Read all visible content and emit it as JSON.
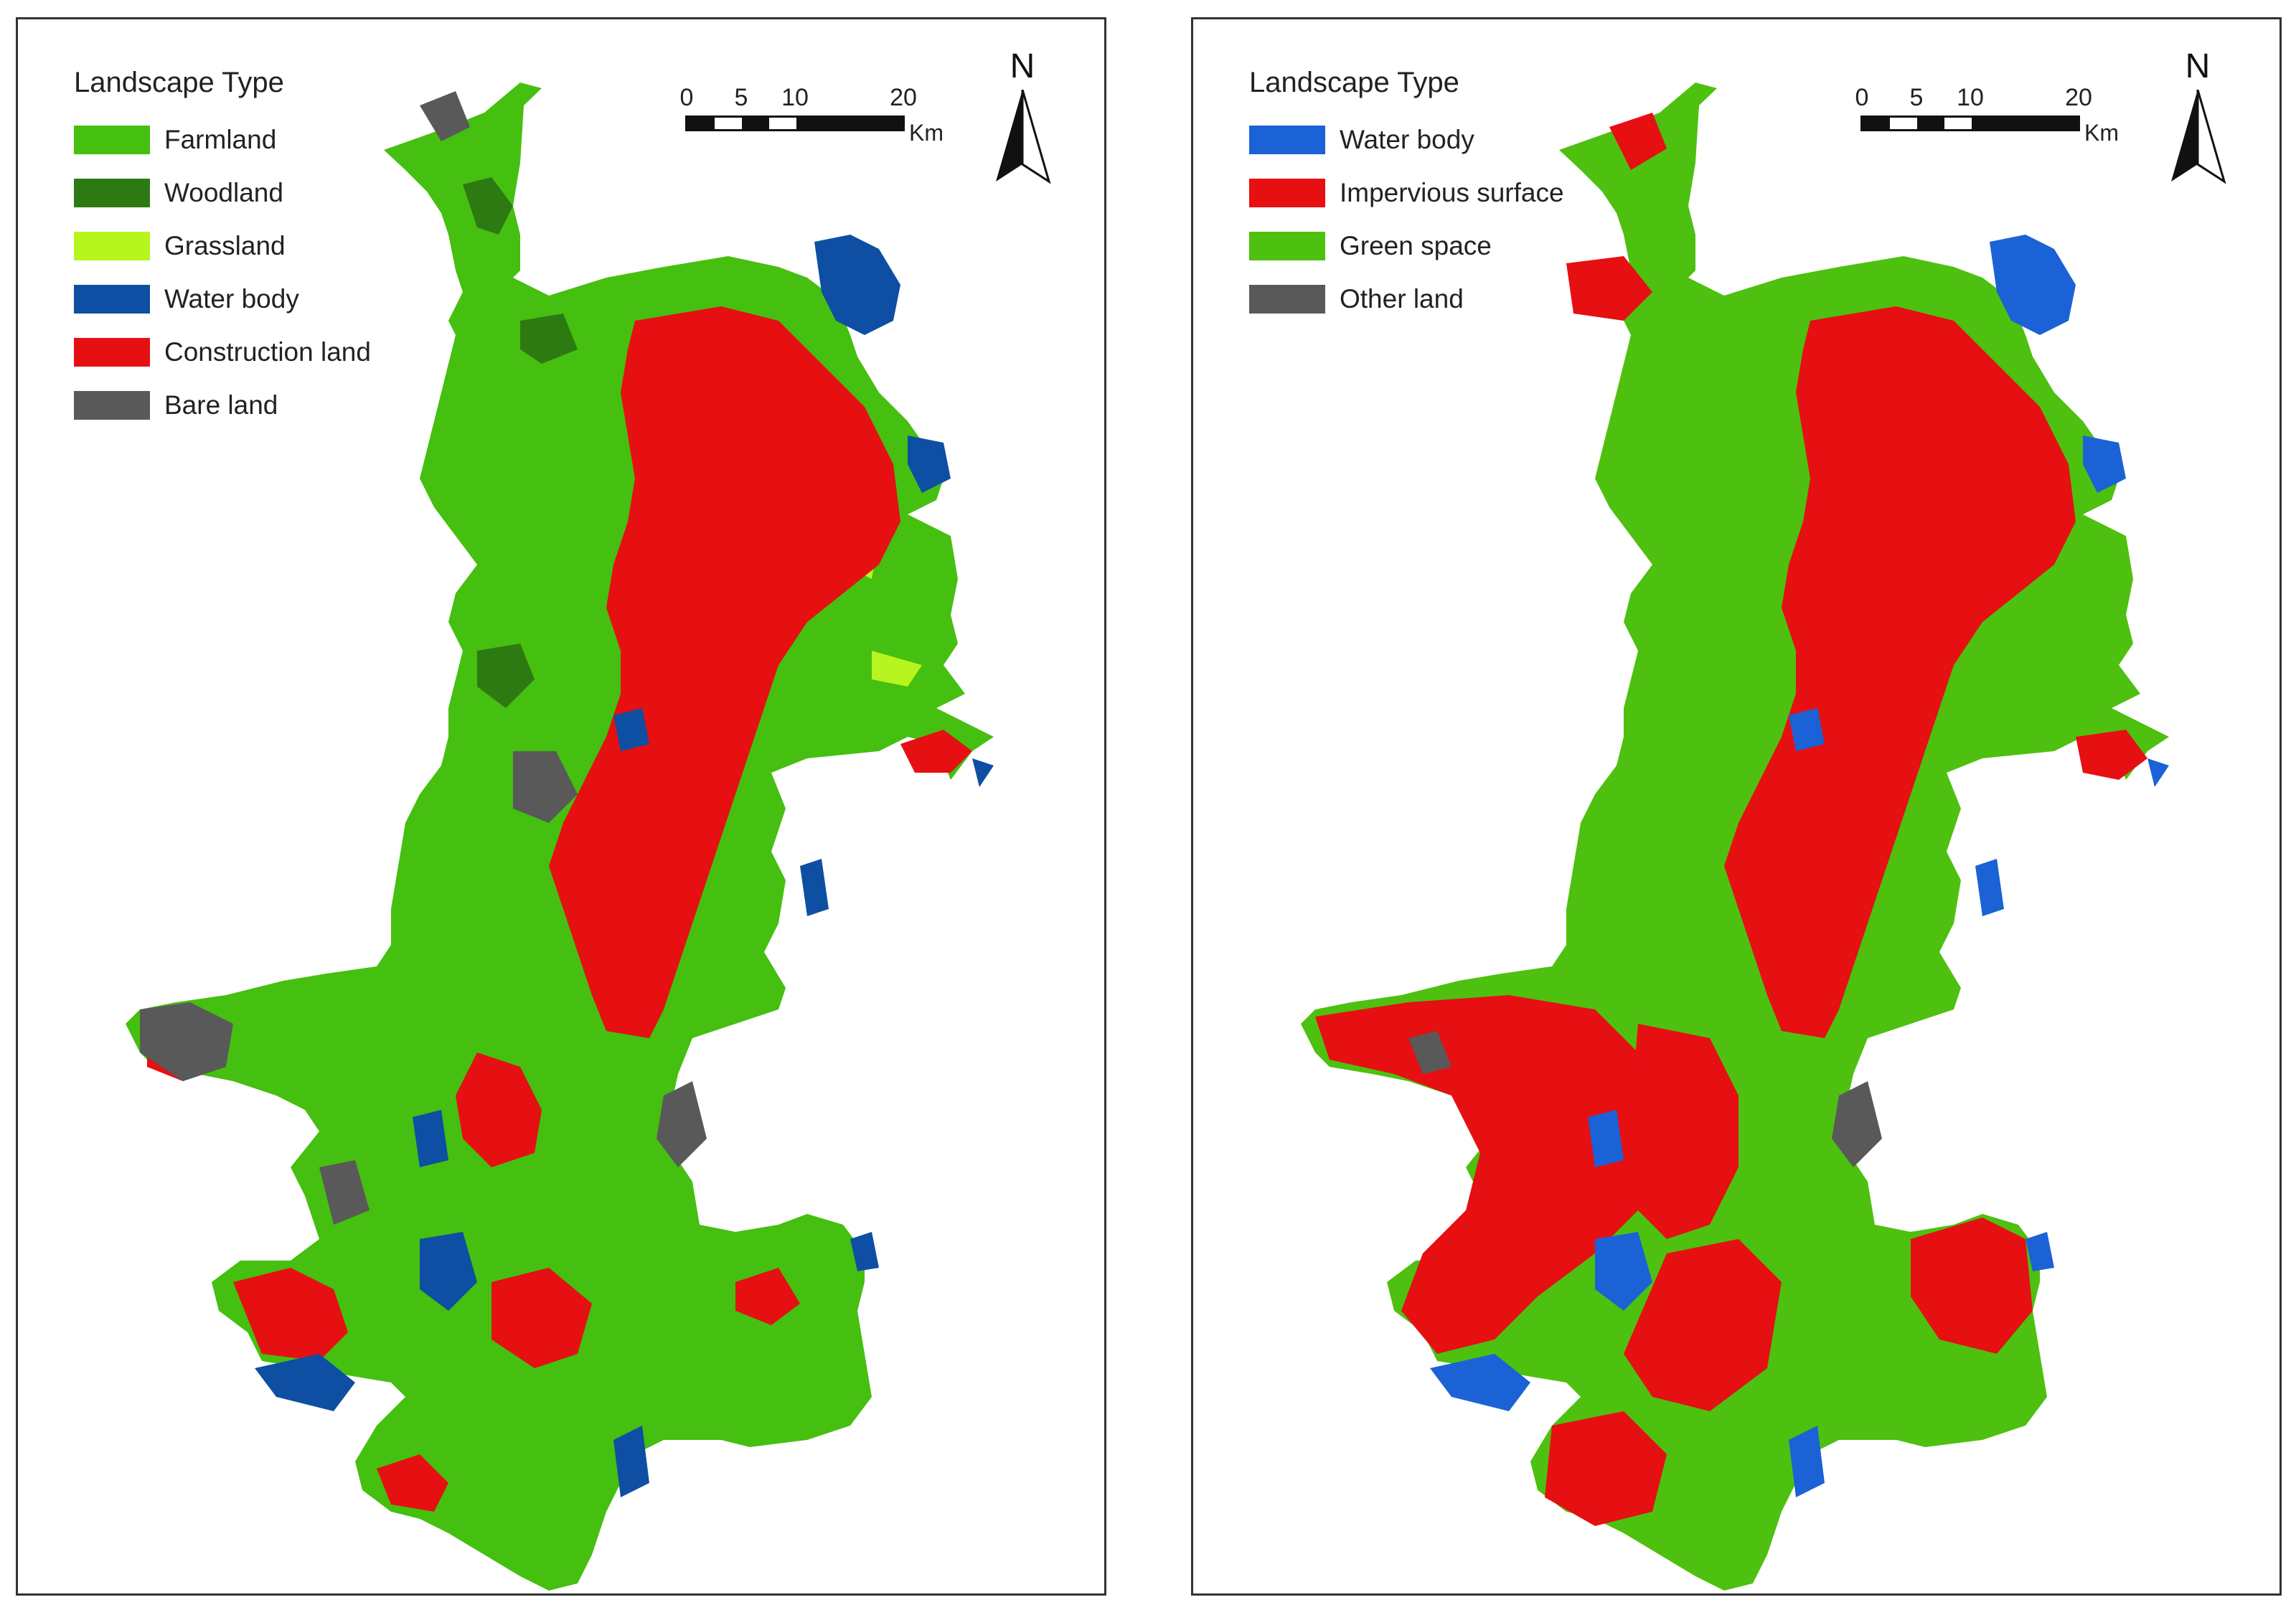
{
  "maps": [
    {
      "legend_title": "Landscape Type",
      "legend": [
        {
          "label": "Farmland",
          "color": "#45bf10"
        },
        {
          "label": "Woodland",
          "color": "#2e7a12"
        },
        {
          "label": "Grassland",
          "color": "#b6f51e"
        },
        {
          "label": "Water body",
          "color": "#0e4fa3"
        },
        {
          "label": "Construction land",
          "color": "#e60f12"
        },
        {
          "label": "Bare land",
          "color": "#595959"
        }
      ],
      "scale": {
        "ticks": [
          "0",
          "5",
          "10",
          "20"
        ],
        "unit": "Km"
      },
      "north_label": "N"
    },
    {
      "legend_title": "Landscape Type",
      "legend": [
        {
          "label": "Water body",
          "color": "#1a62d6"
        },
        {
          "label": "Impervious surface",
          "color": "#e60f12"
        },
        {
          "label": "Green space",
          "color": "#4ec010"
        },
        {
          "label": "Other land",
          "color": "#595959"
        }
      ],
      "scale": {
        "ticks": [
          "0",
          "5",
          "10",
          "20"
        ],
        "unit": "Km"
      },
      "north_label": "N"
    }
  ]
}
